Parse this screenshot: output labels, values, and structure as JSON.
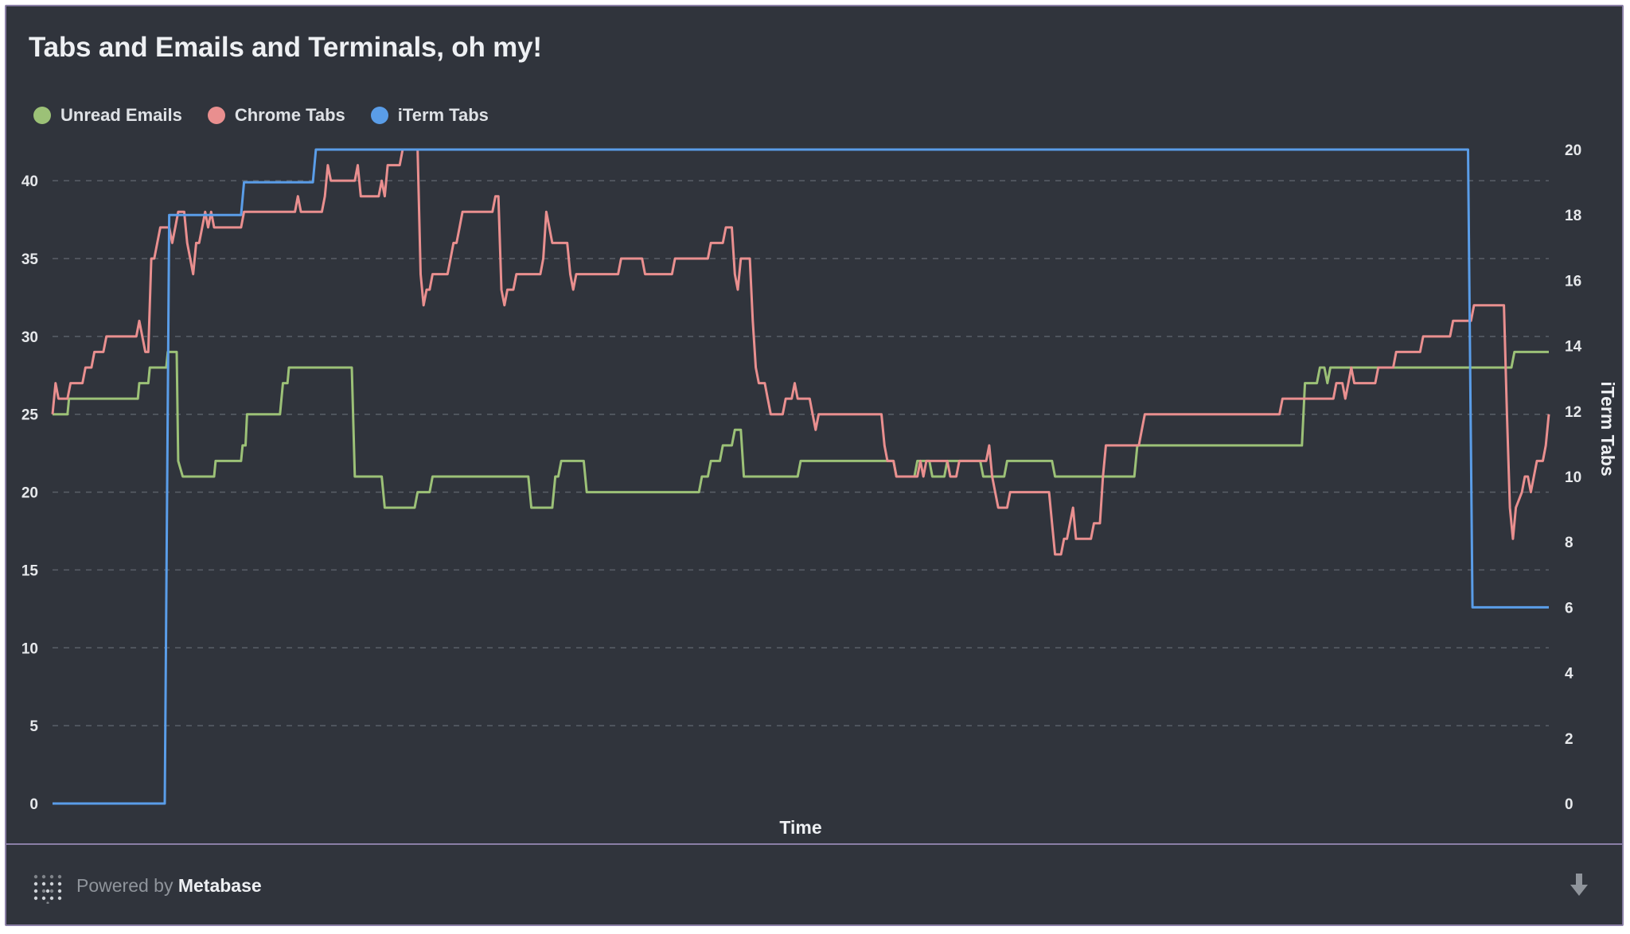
{
  "title": "Tabs and Emails and Terminals, oh my!",
  "footer": {
    "powered_by": "Powered by",
    "brand": "Metabase",
    "logo_icon": "metabase-logo-icon",
    "download_icon": "download-arrow-icon"
  },
  "colors": {
    "background": "#30343c",
    "grid": "#5a5f68",
    "unread_emails": "#9cc177",
    "chrome_tabs": "#e98f8f",
    "iterm_tabs": "#5a9de8"
  },
  "chart_data": {
    "type": "line",
    "title": "Tabs and Emails and Terminals, oh my!",
    "xlabel": "Time",
    "ylabel": "",
    "y2label": "iTerm Tabs",
    "ylim": [
      0,
      42
    ],
    "y2lim": [
      0,
      20
    ],
    "yticks": [
      0,
      5,
      10,
      15,
      20,
      25,
      30,
      35,
      40
    ],
    "y2ticks": [
      0,
      2,
      4,
      6,
      8,
      10,
      12,
      14,
      16,
      18,
      20
    ],
    "xlim": [
      0,
      100
    ],
    "grid": true,
    "legend_position": "top-left",
    "series": [
      {
        "name": "Unread Emails",
        "axis": "left",
        "points": [
          [
            0,
            25
          ],
          [
            1,
            25
          ],
          [
            1.1,
            26
          ],
          [
            5.7,
            26
          ],
          [
            5.8,
            27
          ],
          [
            6.4,
            27
          ],
          [
            6.5,
            28
          ],
          [
            7.6,
            28
          ],
          [
            7.7,
            29
          ],
          [
            8.3,
            29
          ],
          [
            8.4,
            22
          ],
          [
            8.7,
            21
          ],
          [
            10.8,
            21
          ],
          [
            10.9,
            22
          ],
          [
            12.6,
            22
          ],
          [
            12.7,
            23
          ],
          [
            12.9,
            23
          ],
          [
            13.0,
            25
          ],
          [
            15.2,
            25
          ],
          [
            15.4,
            27
          ],
          [
            15.7,
            27
          ],
          [
            15.8,
            28
          ],
          [
            20.0,
            28
          ],
          [
            20.2,
            21
          ],
          [
            22.0,
            21
          ],
          [
            22.2,
            19
          ],
          [
            24.2,
            19
          ],
          [
            24.4,
            20
          ],
          [
            25.2,
            20
          ],
          [
            25.4,
            21
          ],
          [
            31.8,
            21
          ],
          [
            32.0,
            19
          ],
          [
            33.4,
            19
          ],
          [
            33.6,
            21
          ],
          [
            33.8,
            21
          ],
          [
            34.0,
            22
          ],
          [
            35.5,
            22
          ],
          [
            35.7,
            20
          ],
          [
            43.2,
            20
          ],
          [
            43.4,
            21
          ],
          [
            43.8,
            21
          ],
          [
            44.0,
            22
          ],
          [
            44.6,
            22
          ],
          [
            44.8,
            23
          ],
          [
            45.4,
            23
          ],
          [
            45.6,
            24
          ],
          [
            46.0,
            24
          ],
          [
            46.2,
            21
          ],
          [
            49.8,
            21
          ],
          [
            50.0,
            22
          ],
          [
            56.2,
            22
          ],
          [
            56.4,
            21
          ],
          [
            57.6,
            21
          ],
          [
            57.8,
            22
          ],
          [
            58.6,
            22
          ],
          [
            58.8,
            21
          ],
          [
            59.6,
            21
          ],
          [
            59.8,
            22
          ],
          [
            62.0,
            22
          ],
          [
            62.2,
            21
          ],
          [
            63.6,
            21
          ],
          [
            63.8,
            22
          ],
          [
            66.8,
            22
          ],
          [
            67.0,
            21
          ],
          [
            72.3,
            21
          ],
          [
            72.5,
            23
          ],
          [
            83.5,
            23
          ],
          [
            83.7,
            27
          ],
          [
            84.5,
            27
          ],
          [
            84.7,
            28
          ],
          [
            85.0,
            28
          ],
          [
            85.2,
            27
          ],
          [
            85.4,
            28
          ],
          [
            97.5,
            28
          ],
          [
            97.7,
            29
          ],
          [
            100,
            29
          ]
        ]
      },
      {
        "name": "Chrome Tabs",
        "axis": "left",
        "points": [
          [
            0,
            25
          ],
          [
            0.2,
            27
          ],
          [
            0.4,
            26
          ],
          [
            1.0,
            26
          ],
          [
            1.2,
            27
          ],
          [
            2.0,
            27
          ],
          [
            2.2,
            28
          ],
          [
            2.6,
            28
          ],
          [
            2.8,
            29
          ],
          [
            3.4,
            29
          ],
          [
            3.6,
            30
          ],
          [
            5.6,
            30
          ],
          [
            5.8,
            31
          ],
          [
            6.0,
            30
          ],
          [
            6.2,
            29
          ],
          [
            6.4,
            29
          ],
          [
            6.6,
            35
          ],
          [
            6.8,
            35
          ],
          [
            7.0,
            36
          ],
          [
            7.2,
            37
          ],
          [
            7.8,
            37
          ],
          [
            8.0,
            36
          ],
          [
            8.2,
            37
          ],
          [
            8.4,
            38
          ],
          [
            8.8,
            38
          ],
          [
            9.0,
            36
          ],
          [
            9.2,
            35
          ],
          [
            9.4,
            34
          ],
          [
            9.6,
            36
          ],
          [
            9.8,
            36
          ],
          [
            10.0,
            37
          ],
          [
            10.2,
            38
          ],
          [
            10.4,
            37
          ],
          [
            10.6,
            38
          ],
          [
            10.8,
            37
          ],
          [
            12.6,
            37
          ],
          [
            12.8,
            38
          ],
          [
            16.2,
            38
          ],
          [
            16.4,
            39
          ],
          [
            16.6,
            38
          ],
          [
            18.0,
            38
          ],
          [
            18.2,
            39
          ],
          [
            18.4,
            41
          ],
          [
            18.6,
            40
          ],
          [
            20.2,
            40
          ],
          [
            20.4,
            41
          ],
          [
            20.6,
            39
          ],
          [
            21.8,
            39
          ],
          [
            22.0,
            40
          ],
          [
            22.2,
            39
          ],
          [
            22.4,
            41
          ],
          [
            23.2,
            41
          ],
          [
            23.4,
            42
          ],
          [
            24.4,
            42
          ],
          [
            24.6,
            34
          ],
          [
            24.8,
            32
          ],
          [
            25.0,
            33
          ],
          [
            25.2,
            33
          ],
          [
            25.4,
            34
          ],
          [
            26.4,
            34
          ],
          [
            26.6,
            35
          ],
          [
            26.8,
            36
          ],
          [
            27.0,
            36
          ],
          [
            27.2,
            37
          ],
          [
            27.4,
            38
          ],
          [
            29.4,
            38
          ],
          [
            29.6,
            39
          ],
          [
            29.8,
            39
          ],
          [
            30.0,
            33
          ],
          [
            30.2,
            32
          ],
          [
            30.4,
            33
          ],
          [
            30.8,
            33
          ],
          [
            31.0,
            34
          ],
          [
            32.6,
            34
          ],
          [
            32.8,
            35
          ],
          [
            33.0,
            38
          ],
          [
            33.2,
            37
          ],
          [
            33.4,
            36
          ],
          [
            34.4,
            36
          ],
          [
            34.6,
            34
          ],
          [
            34.8,
            33
          ],
          [
            35.0,
            34
          ],
          [
            37.8,
            34
          ],
          [
            38.0,
            35
          ],
          [
            39.4,
            35
          ],
          [
            39.6,
            34
          ],
          [
            41.4,
            34
          ],
          [
            41.6,
            35
          ],
          [
            43.8,
            35
          ],
          [
            44.0,
            36
          ],
          [
            44.8,
            36
          ],
          [
            45.0,
            37
          ],
          [
            45.4,
            37
          ],
          [
            45.6,
            34
          ],
          [
            45.8,
            33
          ],
          [
            46.0,
            35
          ],
          [
            46.6,
            35
          ],
          [
            46.8,
            31
          ],
          [
            47.0,
            28
          ],
          [
            47.2,
            27
          ],
          [
            47.6,
            27
          ],
          [
            47.8,
            26
          ],
          [
            48.0,
            25
          ],
          [
            48.8,
            25
          ],
          [
            49.0,
            26
          ],
          [
            49.4,
            26
          ],
          [
            49.6,
            27
          ],
          [
            49.8,
            26
          ],
          [
            50.6,
            26
          ],
          [
            50.8,
            25
          ],
          [
            51.0,
            24
          ],
          [
            51.2,
            25
          ],
          [
            55.4,
            25
          ],
          [
            55.6,
            23
          ],
          [
            55.8,
            22
          ],
          [
            56.2,
            22
          ],
          [
            56.4,
            21
          ],
          [
            57.6,
            21
          ],
          [
            57.8,
            21
          ],
          [
            58.0,
            22
          ],
          [
            58.2,
            21
          ],
          [
            58.4,
            22
          ],
          [
            59.8,
            22
          ],
          [
            60.0,
            21
          ],
          [
            60.4,
            21
          ],
          [
            60.6,
            22
          ],
          [
            62.4,
            22
          ],
          [
            62.6,
            23
          ],
          [
            62.8,
            21
          ],
          [
            63.0,
            20
          ],
          [
            63.2,
            19
          ],
          [
            63.8,
            19
          ],
          [
            64.0,
            20
          ],
          [
            66.6,
            20
          ],
          [
            66.8,
            18
          ],
          [
            67.0,
            16
          ],
          [
            67.4,
            16
          ],
          [
            67.6,
            17
          ],
          [
            67.8,
            17
          ],
          [
            68.0,
            18
          ],
          [
            68.2,
            19
          ],
          [
            68.4,
            17
          ],
          [
            69.4,
            17
          ],
          [
            69.6,
            18
          ],
          [
            70.0,
            18
          ],
          [
            70.2,
            21
          ],
          [
            70.4,
            23
          ],
          [
            72.6,
            23
          ],
          [
            72.8,
            24
          ],
          [
            73.0,
            25
          ],
          [
            82.0,
            25
          ],
          [
            82.2,
            26
          ],
          [
            85.6,
            26
          ],
          [
            85.8,
            27
          ],
          [
            86.2,
            27
          ],
          [
            86.4,
            26
          ],
          [
            86.6,
            27
          ],
          [
            86.8,
            28
          ],
          [
            87.0,
            27
          ],
          [
            88.4,
            27
          ],
          [
            88.6,
            28
          ],
          [
            89.6,
            28
          ],
          [
            89.8,
            29
          ],
          [
            91.4,
            29
          ],
          [
            91.6,
            30
          ],
          [
            93.4,
            30
          ],
          [
            93.6,
            31
          ],
          [
            94.8,
            31
          ],
          [
            95.0,
            32
          ],
          [
            97.0,
            32
          ],
          [
            97.2,
            25
          ],
          [
            97.4,
            19
          ],
          [
            97.6,
            17
          ],
          [
            97.8,
            19
          ],
          [
            98.2,
            20
          ],
          [
            98.4,
            21
          ],
          [
            98.6,
            21
          ],
          [
            98.8,
            20
          ],
          [
            99.0,
            21
          ],
          [
            99.2,
            22
          ],
          [
            99.6,
            22
          ],
          [
            99.8,
            23
          ],
          [
            100,
            25
          ]
        ]
      },
      {
        "name": "iTerm Tabs",
        "axis": "right",
        "points": [
          [
            0,
            0
          ],
          [
            7.5,
            0
          ],
          [
            7.8,
            18
          ],
          [
            12.6,
            18
          ],
          [
            12.8,
            19
          ],
          [
            17.4,
            19
          ],
          [
            17.6,
            20
          ],
          [
            94.6,
            20
          ],
          [
            94.9,
            6
          ],
          [
            100,
            6
          ]
        ]
      }
    ]
  }
}
